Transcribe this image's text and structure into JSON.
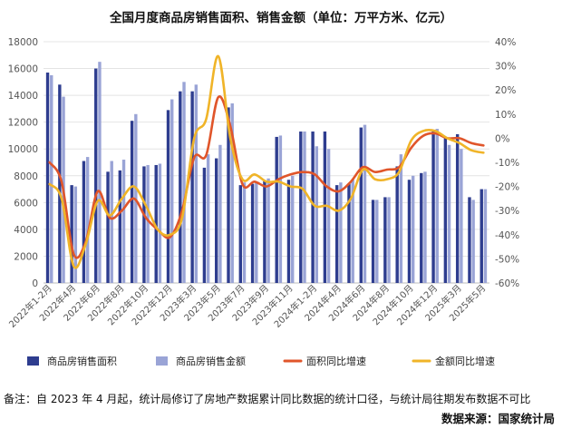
{
  "title": "全国月度商品房销售面积、销售金额（单位：万平方米、亿元）",
  "note": "备注：自 2023 年 4 月起，统计局修订了房地产数据累计同比数据的统计口径，与统计局往期发布数据不可比",
  "source": "数据来源：国家统计局",
  "chart_data": {
    "type": "bar+line",
    "y_left": {
      "min": 0,
      "max": 18000,
      "ticks": [
        0,
        2000,
        4000,
        6000,
        8000,
        10000,
        12000,
        14000,
        16000,
        18000
      ]
    },
    "y_right": {
      "min": -60,
      "max": 40,
      "ticks": [
        "-60%",
        "-50%",
        "-40%",
        "-30%",
        "-20%",
        "-10%",
        "0%",
        "10%",
        "20%",
        "30%",
        "40%"
      ]
    },
    "x_tick_labels": [
      "2022年1-2月",
      "2022年4月",
      "2022年6月",
      "2022年8月",
      "2022年10月",
      "2022年12月",
      "2023年3月",
      "2023年5月",
      "2023年7月",
      "2023年9月",
      "2023年11月",
      "2024年1-2月",
      "2024年4月",
      "2024年6月",
      "2024年8月",
      "2024年10月",
      "2024年12月",
      "2025年3月",
      "2025年5月"
    ],
    "x": [
      "2022年1-2月",
      "2022年3月",
      "2022年4月",
      "2022年5月",
      "2022年6月",
      "2022年7月",
      "2022年8月",
      "2022年9月",
      "2022年10月",
      "2022年11月",
      "2022年12月",
      "2023年1-2月",
      "2023年3月",
      "2023年4月",
      "2023年5月",
      "2023年6月",
      "2023年7月",
      "2023年8月",
      "2023年9月",
      "2023年10月",
      "2023年11月",
      "2023年12月",
      "2024年1-2月",
      "2024年3月",
      "2024年4月",
      "2024年5月",
      "2024年6月",
      "2024年7月",
      "2024年8月",
      "2024年9月",
      "2024年10月",
      "2024年11月",
      "2024年12月",
      "2025年1-2月",
      "2025年3月",
      "2025年4月",
      "2025年5月"
    ],
    "series": [
      {
        "name": "商品房销售面积",
        "kind": "bar",
        "axis": "left",
        "color": "#2e3d8f",
        "values": [
          15700,
          14800,
          7300,
          9100,
          16000,
          8300,
          8400,
          12100,
          8700,
          8800,
          12900,
          14300,
          14300,
          8600,
          9300,
          13100,
          7300,
          7400,
          7600,
          10900,
          7700,
          11300,
          11300,
          11300,
          7300,
          7400,
          11600,
          6200,
          6400,
          8700,
          7700,
          8200,
          11300,
          10800,
          11100,
          6400,
          7000
        ]
      },
      {
        "name": "商品房销售金额",
        "kind": "bar",
        "axis": "left",
        "color": "#9aa4d6",
        "values": [
          15500,
          13900,
          7200,
          9400,
          16500,
          9100,
          9200,
          12600,
          8800,
          8900,
          13700,
          15000,
          14800,
          9600,
          10300,
          13400,
          7500,
          7500,
          7800,
          11000,
          8000,
          11300,
          10200,
          10000,
          7500,
          7700,
          11800,
          6200,
          6400,
          9600,
          8000,
          8300,
          11500,
          10300,
          10000,
          6200,
          7000
        ]
      },
      {
        "name": "面积同比增速",
        "kind": "line",
        "axis": "right",
        "color": "#e0552a",
        "values": [
          -10,
          -18,
          -48,
          -43,
          -22,
          -33,
          -30,
          -25,
          -33,
          -38,
          -41,
          -30,
          -8,
          -7,
          17,
          5,
          -19,
          -18,
          -20,
          -17,
          -15,
          -14,
          -15,
          -20,
          -22,
          -18,
          -12,
          -14,
          -13,
          -12,
          -4,
          1,
          2,
          0,
          0,
          -2,
          -3
        ]
      },
      {
        "name": "金额同比增速",
        "kind": "line",
        "axis": "right",
        "color": "#f0b428",
        "values": [
          -19,
          -25,
          -53,
          -44,
          -26,
          -32,
          -25,
          -20,
          -28,
          -38,
          -40,
          -33,
          0,
          8,
          34,
          0,
          -17,
          -15,
          -18,
          -18,
          -20,
          -21,
          -28,
          -28,
          -30,
          -25,
          -13,
          -17,
          -17,
          -14,
          -1,
          3,
          3,
          0,
          -2,
          -5,
          -6
        ]
      }
    ]
  }
}
